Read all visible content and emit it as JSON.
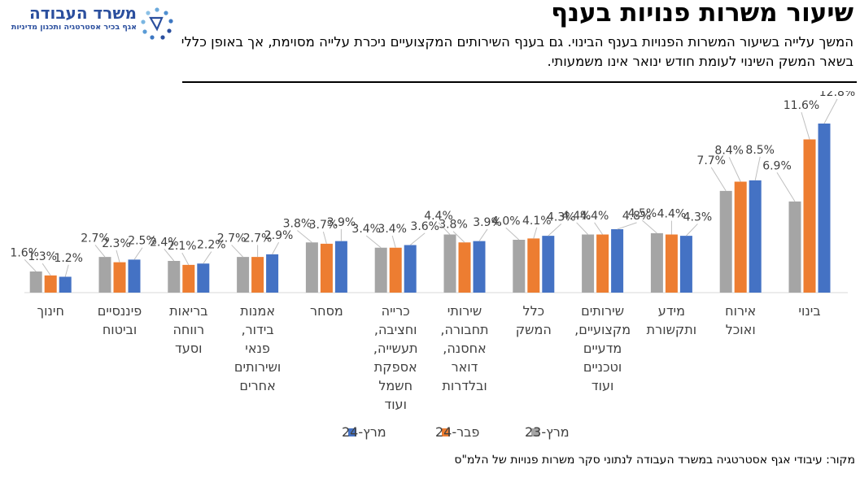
{
  "header": {
    "logo_name": "משרד העבודה",
    "logo_sub": "אגף בכיר אסטרטגיה ותכנון מדיניות",
    "logo_icon": "ministry-logo-icon",
    "title": "שיעור משרות פנויות בענף",
    "subtitle": "המשך עלייה בשיעור המשרות הפנויות בענף הבינוי. גם בענף השירותים המקצועיים ניכרת עלייה מסוימת, אך באופן כללי בשאר המשק השינוי לעומת חודש ינואר אינו משמעותי."
  },
  "chart_data": {
    "type": "bar",
    "title": "",
    "xlabel": "",
    "ylabel": "",
    "ylim": [
      0,
      14
    ],
    "grid": false,
    "legend_position": "bottom",
    "categories": [
      [
        "בינוי"
      ],
      [
        "אירוח",
        "ואוכל"
      ],
      [
        "מידע",
        "ותקשורת"
      ],
      [
        "שירותים",
        "מקצועיים,",
        "מדעיים",
        "וטכניים",
        "ועוד"
      ],
      [
        "כלל",
        "המשק"
      ],
      [
        "שירותי",
        "תחבורה,",
        "אחסנה,",
        "דואר",
        "ובלדרות"
      ],
      [
        "כרייה",
        "וחציבה,",
        "תעשייה,",
        "אספקת",
        "חשמל",
        "ועוד"
      ],
      [
        "מסחר"
      ],
      [
        "אמנות",
        "בידור,",
        "פנאי",
        "ושירותים",
        "אחרים"
      ],
      [
        "בריאות",
        "רווחה",
        "וסעד"
      ],
      [
        "פיננסיים",
        "וביטוח"
      ],
      [
        "חינוך"
      ]
    ],
    "series": [
      {
        "name": "מרץ-23",
        "color": "#a5a5a5",
        "values": [
          6.9,
          7.7,
          4.5,
          4.4,
          4.0,
          4.4,
          3.4,
          3.8,
          2.7,
          2.4,
          2.7,
          1.6
        ]
      },
      {
        "name": "פבר-24",
        "color": "#ed7d31",
        "values": [
          11.6,
          8.4,
          4.4,
          4.4,
          4.1,
          3.8,
          3.4,
          3.7,
          2.7,
          2.1,
          2.3,
          1.3
        ]
      },
      {
        "name": "מרץ-24",
        "color": "#4472c4",
        "values": [
          12.8,
          8.5,
          4.3,
          4.8,
          4.3,
          3.9,
          3.6,
          3.9,
          2.9,
          2.2,
          2.5,
          1.2
        ]
      }
    ],
    "value_suffix": "%"
  },
  "source": "מקור: עיבודי אגף אסטרטגיה במשרד העבודה לנתוני סקר משרות פנויות של הלמ\"ס"
}
